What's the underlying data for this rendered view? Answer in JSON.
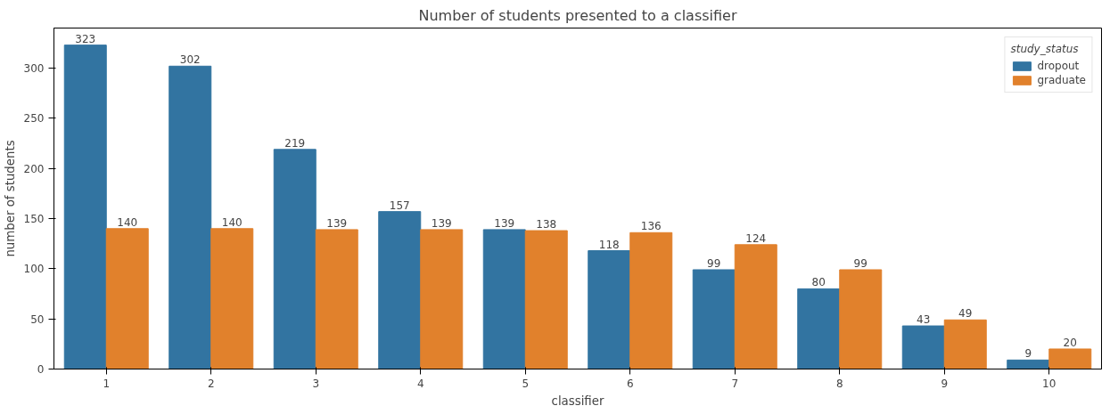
{
  "chart_data": {
    "type": "bar",
    "title": "Number of students presented to a classifier",
    "xlabel": "classifier",
    "ylabel": "number of students",
    "legend_title": "study_status",
    "categories": [
      "1",
      "2",
      "3",
      "4",
      "5",
      "6",
      "7",
      "8",
      "9",
      "10"
    ],
    "series": [
      {
        "name": "dropout",
        "color": "#3274a1",
        "values": [
          323,
          302,
          219,
          157,
          139,
          118,
          99,
          80,
          43,
          9
        ]
      },
      {
        "name": "graduate",
        "color": "#e1812c",
        "values": [
          140,
          140,
          139,
          139,
          138,
          136,
          124,
          99,
          49,
          20
        ]
      }
    ],
    "ylim": [
      0,
      340
    ],
    "yticks": [
      0,
      50,
      100,
      150,
      200,
      250,
      300
    ],
    "grid": false,
    "legend": "top right",
    "data_labels": true
  }
}
